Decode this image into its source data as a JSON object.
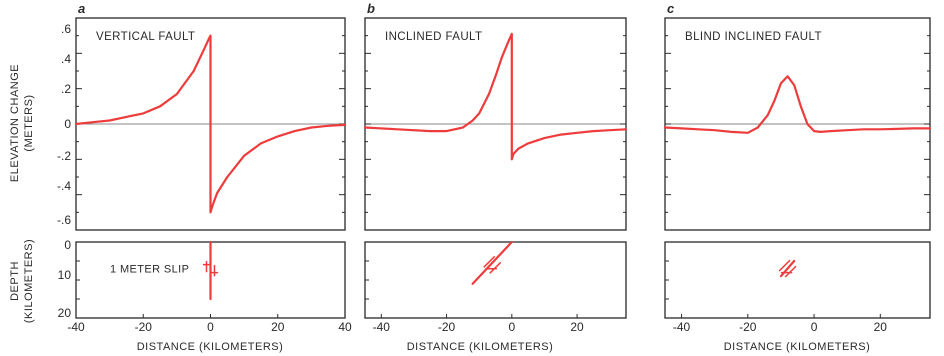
{
  "colors": {
    "curve": "#ee3b3b",
    "axis": "#2a2a2a",
    "zero": "#8a8a8a"
  },
  "ylabel_elev": [
    "ELEVATION CHANGE",
    "(METERS)"
  ],
  "ylabel_depth": [
    "DEPTH",
    "(KILOMETERS)"
  ],
  "xlabel": "DISTANCE (KILOMETERS)",
  "slip_label": "1 METER SLIP",
  "elev_ticks": [
    ".6",
    ".4",
    ".2",
    "0",
    "-.2",
    "-.4",
    "-.6"
  ],
  "depth_ticks": [
    "0",
    "10",
    "20"
  ],
  "chart_data": [
    {
      "type": "line",
      "panel": "a",
      "title": "VERTICAL FAULT",
      "xlim": [
        -40,
        40
      ],
      "ylim": [
        -0.6,
        0.6
      ],
      "depth_lim": [
        0,
        20
      ],
      "x_ticks": [
        "-40",
        "-20",
        "0",
        "20",
        "40"
      ],
      "series": [
        {
          "x": [
            -40,
            -35,
            -30,
            -25,
            -20,
            -15,
            -10,
            -5,
            -2,
            -1,
            -0.3,
            0,
            0,
            0.3,
            1,
            2,
            5,
            10,
            15,
            20,
            25,
            30,
            35,
            40
          ],
          "y": [
            0.0,
            0.01,
            0.02,
            0.04,
            0.06,
            0.1,
            0.17,
            0.3,
            0.42,
            0.46,
            0.49,
            0.5,
            -0.5,
            -0.48,
            -0.44,
            -0.39,
            -0.3,
            -0.18,
            -0.11,
            -0.07,
            -0.04,
            -0.02,
            -0.01,
            -0.005
          ]
        }
      ],
      "fault": {
        "type": "vertical",
        "x": [
          0,
          0
        ],
        "depth": [
          0,
          15
        ]
      },
      "slip_symbol": {
        "x": 0,
        "depth": 7
      }
    },
    {
      "type": "line",
      "panel": "b",
      "title": "INCLINED FAULT",
      "xlim": [
        -45,
        35
      ],
      "ylim": [
        -0.6,
        0.6
      ],
      "depth_lim": [
        0,
        20
      ],
      "x_ticks": [
        "-40",
        "-20",
        "0",
        "20"
      ],
      "series": [
        {
          "x": [
            -45,
            -35,
            -25,
            -20,
            -15,
            -12,
            -10,
            -7,
            -5,
            -3,
            -1,
            0,
            0,
            0.5,
            2,
            5,
            10,
            15,
            20,
            25,
            30,
            35
          ],
          "y": [
            -0.02,
            -0.03,
            -0.04,
            -0.04,
            -0.02,
            0.02,
            0.06,
            0.17,
            0.27,
            0.38,
            0.47,
            0.51,
            -0.2,
            -0.17,
            -0.14,
            -0.11,
            -0.08,
            -0.06,
            -0.05,
            -0.04,
            -0.035,
            -0.03
          ]
        }
      ],
      "fault": {
        "type": "inclined",
        "x": [
          -12,
          0
        ],
        "depth": [
          11,
          0
        ]
      },
      "slip_symbol": {
        "x": -6,
        "depth": 6
      }
    },
    {
      "type": "line",
      "panel": "c",
      "title": "BLIND INCLINED FAULT",
      "xlim": [
        -45,
        35
      ],
      "ylim": [
        -0.6,
        0.6
      ],
      "depth_lim": [
        0,
        20
      ],
      "x_ticks": [
        "-40",
        "-20",
        "0",
        "20"
      ],
      "series": [
        {
          "x": [
            -45,
            -40,
            -35,
            -30,
            -25,
            -20,
            -17,
            -14,
            -12,
            -10,
            -8,
            -6,
            -4,
            -2,
            0,
            2,
            5,
            10,
            15,
            20,
            25,
            30,
            35
          ],
          "y": [
            -0.02,
            -0.025,
            -0.03,
            -0.035,
            -0.045,
            -0.05,
            -0.02,
            0.05,
            0.13,
            0.23,
            0.27,
            0.22,
            0.1,
            0.0,
            -0.04,
            -0.045,
            -0.04,
            -0.035,
            -0.03,
            -0.03,
            -0.028,
            -0.025,
            -0.025
          ]
        }
      ],
      "fault": {
        "type": "blind",
        "x": [
          -10,
          -6
        ],
        "depth": [
          9,
          5
        ]
      },
      "slip_symbol": {
        "x": -8,
        "depth": 7
      }
    }
  ]
}
